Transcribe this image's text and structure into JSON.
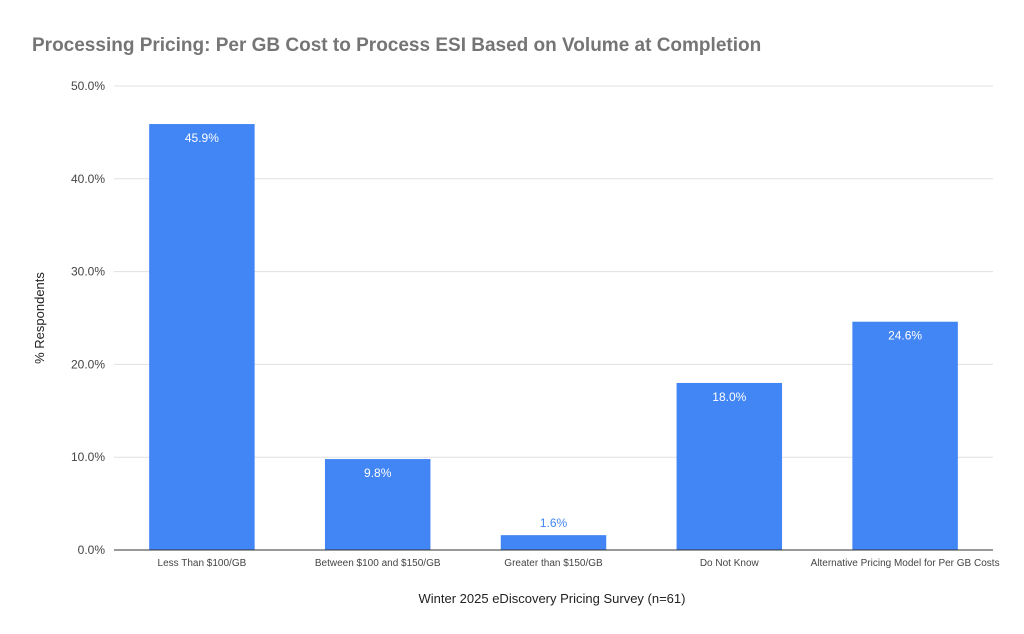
{
  "chart_data": {
    "type": "bar",
    "title": "Processing Pricing: Per GB Cost to Process ESI Based on Volume at Completion",
    "xlabel": "Winter 2025 eDiscovery Pricing Survey (n=61)",
    "ylabel": "% Respondents",
    "ylim": [
      0,
      50
    ],
    "yticks": [
      0,
      10,
      20,
      30,
      40,
      50
    ],
    "ytick_labels": [
      "0.0%",
      "10.0%",
      "20.0%",
      "30.0%",
      "40.0%",
      "50.0%"
    ],
    "categories": [
      "Less Than $100/GB",
      "Between $100 and $150/GB",
      "Greater than $150/GB",
      "Do Not Know",
      "Alternative Pricing Model for Per GB Costs"
    ],
    "values": [
      45.9,
      9.8,
      1.6,
      18.0,
      24.6
    ],
    "value_labels": [
      "45.9%",
      "9.8%",
      "1.6%",
      "18.0%",
      "24.6%"
    ],
    "grid": true,
    "legend": "none",
    "colors": {
      "bar": "#4285f4",
      "grid": "#e0e0e0",
      "title": "#757575",
      "label_inside": "#ffffff",
      "label_outside": "#4285f4"
    }
  }
}
